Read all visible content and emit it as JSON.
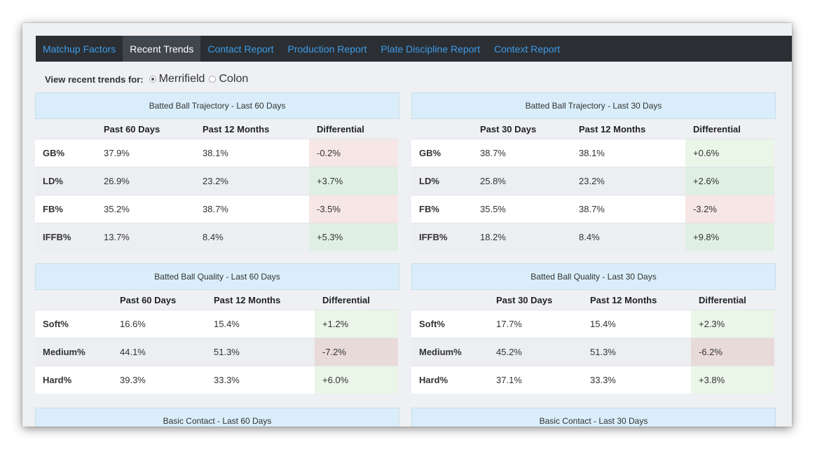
{
  "tabs": [
    {
      "label": "Matchup Factors",
      "active": false
    },
    {
      "label": "Recent Trends",
      "active": true
    },
    {
      "label": "Contact Report",
      "active": false
    },
    {
      "label": "Production Report",
      "active": false
    },
    {
      "label": "Plate Discipline Report",
      "active": false
    },
    {
      "label": "Context Report",
      "active": false
    }
  ],
  "view": {
    "label": "View recent trends for:",
    "options": [
      {
        "label": "Merrifield",
        "checked": true
      },
      {
        "label": "Colon",
        "checked": false
      }
    ]
  },
  "panels": {
    "traj60": {
      "title": "Batted Ball Trajectory - Last 60 Days",
      "headers": [
        "",
        "Past 60 Days",
        "Past 12 Months",
        "Differential"
      ],
      "rows": [
        [
          "GB%",
          "37.9%",
          "38.1%",
          "-0.2%"
        ],
        [
          "LD%",
          "26.9%",
          "23.2%",
          "+3.7%"
        ],
        [
          "FB%",
          "35.2%",
          "38.7%",
          "-3.5%"
        ],
        [
          "IFFB%",
          "13.7%",
          "8.4%",
          "+5.3%"
        ]
      ]
    },
    "traj30": {
      "title": "Batted Ball Trajectory - Last 30 Days",
      "headers": [
        "",
        "Past 30 Days",
        "Past 12 Months",
        "Differential"
      ],
      "rows": [
        [
          "GB%",
          "38.7%",
          "38.1%",
          "+0.6%"
        ],
        [
          "LD%",
          "25.8%",
          "23.2%",
          "+2.6%"
        ],
        [
          "FB%",
          "35.5%",
          "38.7%",
          "-3.2%"
        ],
        [
          "IFFB%",
          "18.2%",
          "8.4%",
          "+9.8%"
        ]
      ]
    },
    "qual60": {
      "title": "Batted Ball Quality - Last 60 Days",
      "headers": [
        "",
        "Past 60 Days",
        "Past 12 Months",
        "Differential"
      ],
      "rows": [
        [
          "Soft%",
          "16.6%",
          "15.4%",
          "+1.2%"
        ],
        [
          "Medium%",
          "44.1%",
          "51.3%",
          "-7.2%"
        ],
        [
          "Hard%",
          "39.3%",
          "33.3%",
          "+6.0%"
        ]
      ]
    },
    "qual30": {
      "title": "Batted Ball Quality - Last 30 Days",
      "headers": [
        "",
        "Past 30 Days",
        "Past 12 Months",
        "Differential"
      ],
      "rows": [
        [
          "Soft%",
          "17.7%",
          "15.4%",
          "+2.3%"
        ],
        [
          "Medium%",
          "45.2%",
          "51.3%",
          "-6.2%"
        ],
        [
          "Hard%",
          "37.1%",
          "33.3%",
          "+3.8%"
        ]
      ]
    },
    "contact60": {
      "title": "Basic Contact - Last 60 Days"
    },
    "contact30": {
      "title": "Basic Contact - Last 30 Days"
    }
  }
}
